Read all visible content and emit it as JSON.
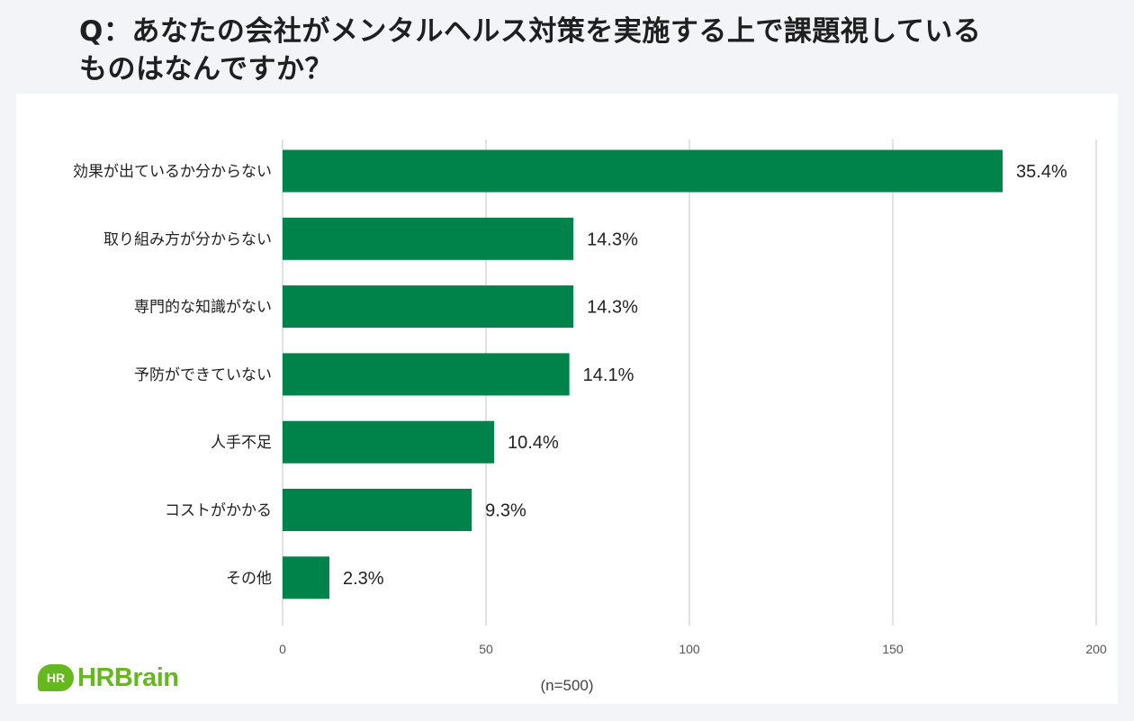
{
  "title": {
    "line1": "Q：あなたの会社がメンタルヘルス対策を実施する上で課題視している",
    "line2": "ものはなんですか？"
  },
  "logo": {
    "badge": "HR",
    "text": "HRBrain",
    "color": "#66b81f"
  },
  "footnote": "(n=500)",
  "chart_data": {
    "type": "bar",
    "orientation": "horizontal",
    "categories": [
      "効果が出ているか分からない",
      "取り組み方が分からない",
      "専門的な知識がない",
      "予防ができていない",
      "人手不足",
      "コストがかかる",
      "その他"
    ],
    "values": [
      177,
      71.5,
      71.5,
      70.5,
      52,
      46.5,
      11.5
    ],
    "data_labels": [
      "35.4%",
      "14.3%",
      "14.3%",
      "14.1%",
      "10.4%",
      "9.3%",
      "2.3%"
    ],
    "xlim": [
      0,
      200
    ],
    "xticks": [
      0,
      50,
      100,
      150,
      200
    ],
    "xtick_labels": [
      "0",
      "50",
      "100",
      "150",
      "200"
    ],
    "grid": true,
    "bar_color": "#00834a",
    "grid_color": "#d9d9d9"
  }
}
